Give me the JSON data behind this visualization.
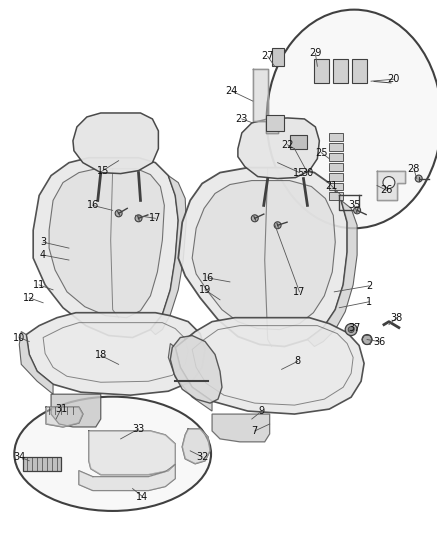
{
  "bg_color": "#ffffff",
  "line_color": "#404040",
  "label_fontsize": 7.0
}
